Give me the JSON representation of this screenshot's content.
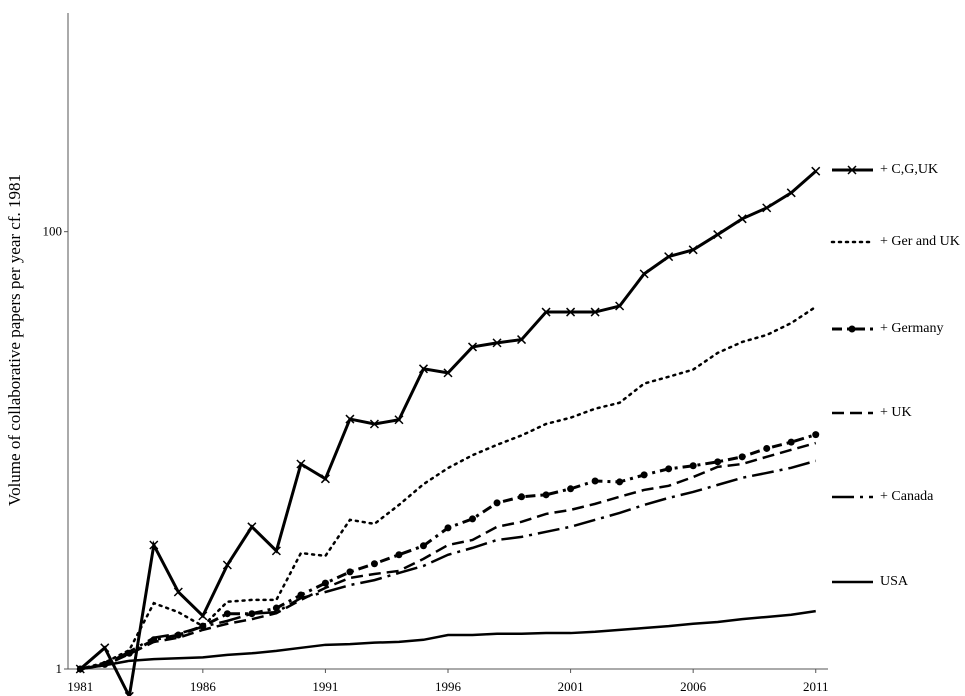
{
  "chart_data": {
    "type": "line",
    "y_label": "Volume of collaborative papers per year cf. 1981",
    "x": [
      1981,
      1982,
      1983,
      1984,
      1985,
      1986,
      1987,
      1988,
      1989,
      1990,
      1991,
      1992,
      1993,
      1994,
      1995,
      1996,
      1997,
      1998,
      1999,
      2000,
      2001,
      2002,
      2003,
      2004,
      2005,
      2006,
      2007,
      2008,
      2009,
      2010,
      2011
    ],
    "xlim": [
      1980.5,
      2011.5
    ],
    "xticks": [
      1981,
      1986,
      1991,
      1996,
      2001,
      2006,
      2011
    ],
    "ylim": [
      1,
      1000
    ],
    "yticks": [
      1,
      100
    ],
    "ylog": true,
    "grid": false,
    "series": [
      {
        "name": "+ C,G,UK",
        "color": "#000000",
        "dash": "solid",
        "marker": "x",
        "width": 3,
        "values": [
          1,
          1.25,
          0.75,
          3.69,
          2.25,
          1.75,
          2.99,
          4.47,
          3.47,
          8.66,
          7.41,
          13.9,
          13.2,
          13.8,
          23.6,
          22.6,
          29.7,
          31.0,
          32.1,
          42.9,
          42.9,
          42.9,
          45.7,
          64.1,
          76.9,
          82.6,
          97.0,
          114.5,
          128.5,
          150.6,
          189
        ]
      },
      {
        "name": "+ Ger and UK",
        "color": "#000000",
        "dash": "dotted",
        "marker": "none",
        "width": 2.5,
        "values": [
          1,
          1.07,
          1.22,
          2.0,
          1.82,
          1.57,
          2.03,
          2.07,
          2.07,
          3.39,
          3.29,
          4.81,
          4.61,
          5.63,
          7.0,
          8.3,
          9.5,
          10.6,
          11.7,
          13.2,
          14.1,
          15.5,
          16.5,
          20.2,
          21.7,
          23.4,
          27.9,
          31.3,
          33.7,
          38.2,
          45.3
        ]
      },
      {
        "name": "+ Germany",
        "color": "#000000",
        "dash": "dash-dot",
        "marker": "circle",
        "width": 3,
        "values": [
          1,
          1.05,
          1.18,
          1.36,
          1.43,
          1.57,
          1.79,
          1.79,
          1.9,
          2.18,
          2.47,
          2.78,
          3.03,
          3.33,
          3.66,
          4.42,
          4.86,
          5.75,
          6.13,
          6.26,
          6.67,
          7.24,
          7.17,
          7.72,
          8.23,
          8.5,
          8.86,
          9.34,
          10.2,
          10.9,
          11.8
        ]
      },
      {
        "name": "+ UK",
        "color": "#000000",
        "dash": "dashed",
        "marker": "none",
        "width": 2.5,
        "values": [
          1,
          1.04,
          1.17,
          1.33,
          1.39,
          1.51,
          1.61,
          1.69,
          1.8,
          2.07,
          2.35,
          2.61,
          2.72,
          2.81,
          3.19,
          3.69,
          3.89,
          4.47,
          4.71,
          5.12,
          5.34,
          5.69,
          6.13,
          6.59,
          6.88,
          7.55,
          8.4,
          8.66,
          9.34,
          10.05,
          10.8
        ]
      },
      {
        "name": "+ Canada",
        "color": "#000000",
        "dash": "long-dash-dot",
        "marker": "none",
        "width": 2.5,
        "values": [
          1,
          1.05,
          1.2,
          1.39,
          1.45,
          1.56,
          1.66,
          1.79,
          1.82,
          2.11,
          2.25,
          2.42,
          2.55,
          2.75,
          2.96,
          3.33,
          3.58,
          3.89,
          4.02,
          4.24,
          4.47,
          4.81,
          5.17,
          5.63,
          6.06,
          6.45,
          6.95,
          7.49,
          7.88,
          8.32,
          8.95
        ]
      },
      {
        "name": "USA",
        "color": "#000000",
        "dash": "solid",
        "marker": "none",
        "width": 2.5,
        "values": [
          1,
          1.04,
          1.09,
          1.11,
          1.12,
          1.13,
          1.16,
          1.18,
          1.21,
          1.25,
          1.29,
          1.3,
          1.32,
          1.33,
          1.36,
          1.43,
          1.43,
          1.45,
          1.45,
          1.46,
          1.46,
          1.48,
          1.51,
          1.54,
          1.57,
          1.61,
          1.64,
          1.69,
          1.73,
          1.77,
          1.84
        ]
      }
    ]
  }
}
